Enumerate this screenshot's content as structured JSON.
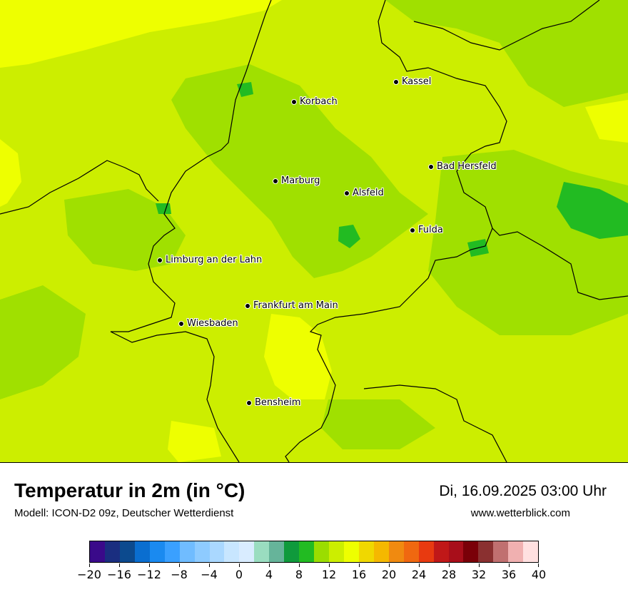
{
  "map": {
    "cities": [
      {
        "name": "Kassel",
        "slug": "kassel"
      },
      {
        "name": "Korbach",
        "slug": "korbach"
      },
      {
        "name": "Bad Hersfeld",
        "slug": "bad-hersfeld"
      },
      {
        "name": "Marburg",
        "slug": "marburg"
      },
      {
        "name": "Alsfeld",
        "slug": "alsfeld"
      },
      {
        "name": "Fulda",
        "slug": "fulda"
      },
      {
        "name": "Limburg an der Lahn",
        "slug": "limburg-an-der-lahn"
      },
      {
        "name": "Frankfurt am Main",
        "slug": "frankfurt-am-main"
      },
      {
        "name": "Wiesbaden",
        "slug": "wiesbaden"
      },
      {
        "name": "Bensheim",
        "slug": "bensheim"
      }
    ],
    "colors": {
      "base": "#ccee00",
      "cooler": "#a0e000",
      "coolest": "#22bb22",
      "warmer": "#eeff00"
    }
  },
  "title": "Temperatur in 2m (in °C)",
  "model": "Modell: ICON-D2 09z, Deutscher Wetterdienst",
  "datetime": "Di, 16.09.2025 03:00 Uhr",
  "website": "www.wetterblick.com",
  "legend": {
    "colors": [
      "#3a0a8a",
      "#1a2e80",
      "#0c4a8e",
      "#0a6ed0",
      "#1a8af0",
      "#3aa0ff",
      "#70bcff",
      "#8ecbff",
      "#aad8ff",
      "#c8e6ff",
      "#d9ecff",
      "#9addc0",
      "#66b49a",
      "#0f9a3c",
      "#22bb22",
      "#9bdd00",
      "#ccee00",
      "#eeff00",
      "#f0d800",
      "#f5b800",
      "#f08a10",
      "#f06810",
      "#e83a10",
      "#c01818",
      "#a80e1a",
      "#7a0008",
      "#8a3030",
      "#c07070",
      "#f0b0b0",
      "#ffe0e0"
    ],
    "ticks": [
      "−20",
      "−16",
      "−12",
      "−8",
      "−4",
      "0",
      "4",
      "8",
      "12",
      "16",
      "20",
      "24",
      "28",
      "32",
      "36",
      "40"
    ],
    "min": -20,
    "max": 40,
    "tick_values": [
      -20,
      -16,
      -12,
      -8,
      -4,
      0,
      4,
      8,
      12,
      16,
      20,
      24,
      28,
      32,
      36,
      40
    ]
  }
}
